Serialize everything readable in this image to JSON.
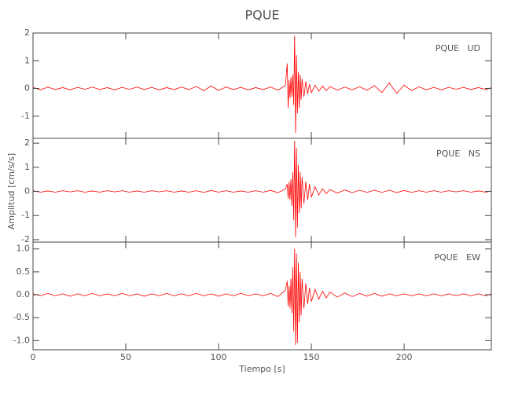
{
  "chart_data": [
    {
      "type": "line",
      "title": "PQUE",
      "label": "PQUE   UD",
      "color": "#ff0000",
      "x": [
        0,
        4,
        8,
        12,
        16,
        20,
        24,
        28,
        32,
        36,
        40,
        44,
        48,
        52,
        56,
        60,
        64,
        68,
        72,
        76,
        80,
        84,
        88,
        92,
        96,
        100,
        104,
        108,
        112,
        116,
        120,
        124,
        128,
        132,
        136,
        137,
        137.5,
        138,
        138.5,
        139,
        139.5,
        140,
        140.5,
        141,
        141.5,
        142,
        142.5,
        143,
        143.5,
        144,
        144.5,
        145,
        146,
        147,
        148,
        149,
        150,
        152,
        154,
        156,
        158,
        160,
        164,
        168,
        172,
        176,
        180,
        184,
        188,
        192,
        196,
        200,
        204,
        208,
        212,
        216,
        220,
        224,
        228,
        232,
        236,
        240,
        244,
        247
      ],
      "values": [
        0.04,
        -0.05,
        0.05,
        -0.04,
        0.03,
        -0.05,
        0.04,
        -0.03,
        0.05,
        -0.04,
        0.03,
        -0.05,
        0.04,
        -0.03,
        0.05,
        -0.04,
        0.04,
        -0.05,
        0.03,
        -0.04,
        0.05,
        -0.04,
        0.07,
        -0.08,
        0.09,
        -0.07,
        0.05,
        -0.04,
        0.04,
        -0.05,
        0.03,
        -0.04,
        0.05,
        -0.06,
        0.1,
        0.9,
        -0.7,
        0.3,
        -0.35,
        0.4,
        -0.3,
        0.5,
        -0.6,
        1.9,
        -1.6,
        1.2,
        -0.9,
        0.6,
        -0.7,
        0.5,
        -0.4,
        0.35,
        -0.3,
        0.25,
        -0.2,
        0.15,
        -0.15,
        0.12,
        -0.1,
        0.09,
        -0.08,
        0.07,
        -0.06,
        0.05,
        -0.05,
        0.06,
        -0.06,
        0.1,
        -0.15,
        0.2,
        -0.18,
        0.12,
        -0.08,
        0.06,
        -0.05,
        0.04,
        -0.05,
        0.04,
        -0.03,
        0.04,
        -0.04,
        0.03,
        -0.04,
        0.03
      ],
      "xlim": [
        0,
        247
      ],
      "xticks": [
        0,
        50,
        100,
        150,
        200
      ],
      "ylim": [
        -1.8,
        2.0
      ],
      "yticks": [
        -1,
        0,
        1,
        2
      ]
    },
    {
      "type": "line",
      "ylabel": "Amplitud [cm/s/s]",
      "label": "PQUE   NS",
      "color": "#ff0000",
      "x": [
        0,
        4,
        8,
        12,
        16,
        20,
        24,
        28,
        32,
        36,
        40,
        44,
        48,
        52,
        56,
        60,
        64,
        68,
        72,
        76,
        80,
        84,
        88,
        92,
        96,
        100,
        104,
        108,
        112,
        116,
        120,
        124,
        128,
        132,
        136,
        137,
        137.5,
        138,
        138.5,
        139,
        139.5,
        140,
        140.5,
        141,
        141.5,
        142,
        142.5,
        143,
        143.5,
        144,
        144.5,
        145,
        146,
        147,
        148,
        149,
        150,
        152,
        154,
        156,
        158,
        160,
        164,
        168,
        172,
        176,
        180,
        184,
        188,
        192,
        196,
        200,
        204,
        208,
        212,
        216,
        220,
        224,
        228,
        232,
        236,
        240,
        244,
        247
      ],
      "values": [
        0.03,
        -0.03,
        0.02,
        -0.03,
        0.03,
        -0.02,
        0.03,
        -0.03,
        0.02,
        -0.03,
        0.03,
        -0.02,
        0.03,
        -0.03,
        0.02,
        -0.03,
        0.03,
        -0.02,
        0.03,
        -0.03,
        0.02,
        -0.03,
        0.03,
        -0.04,
        0.04,
        -0.03,
        0.03,
        -0.03,
        0.02,
        -0.03,
        0.03,
        -0.03,
        0.04,
        -0.05,
        0.1,
        0.3,
        -0.3,
        0.4,
        -0.35,
        0.5,
        -0.6,
        0.8,
        -1.2,
        2.1,
        -1.9,
        1.8,
        -1.5,
        1.1,
        -0.9,
        0.8,
        -0.7,
        0.6,
        -0.5,
        0.4,
        -0.35,
        0.3,
        -0.25,
        0.2,
        -0.15,
        0.12,
        -0.1,
        0.08,
        -0.07,
        0.06,
        -0.05,
        0.05,
        -0.04,
        0.05,
        -0.04,
        0.05,
        -0.05,
        0.04,
        -0.04,
        0.03,
        -0.03,
        0.03,
        -0.03,
        0.03,
        -0.02,
        0.03,
        -0.03,
        0.02,
        -0.03,
        0.02
      ],
      "xlim": [
        0,
        247
      ],
      "xticks": [
        0,
        50,
        100,
        150,
        200
      ],
      "ylim": [
        -2.1,
        2.2
      ],
      "yticks": [
        -2,
        -1,
        0,
        1,
        2
      ]
    },
    {
      "type": "line",
      "xlabel": "Tiempo [s]",
      "label": "PQUE   EW",
      "color": "#ff0000",
      "x": [
        0,
        4,
        8,
        12,
        16,
        20,
        24,
        28,
        32,
        36,
        40,
        44,
        48,
        52,
        56,
        60,
        64,
        68,
        72,
        76,
        80,
        84,
        88,
        92,
        96,
        100,
        104,
        108,
        112,
        116,
        120,
        124,
        128,
        132,
        136,
        137,
        137.5,
        138,
        138.5,
        139,
        139.5,
        140,
        140.5,
        141,
        141.5,
        142,
        142.5,
        143,
        143.5,
        144,
        144.5,
        145,
        146,
        147,
        148,
        149,
        150,
        152,
        154,
        156,
        158,
        160,
        164,
        168,
        172,
        176,
        180,
        184,
        188,
        192,
        196,
        200,
        204,
        208,
        212,
        216,
        220,
        224,
        228,
        232,
        236,
        240,
        244,
        247
      ],
      "values": [
        0.02,
        -0.02,
        0.03,
        -0.02,
        0.02,
        -0.03,
        0.02,
        -0.02,
        0.03,
        -0.02,
        0.02,
        -0.02,
        0.03,
        -0.02,
        0.02,
        -0.03,
        0.02,
        -0.02,
        0.03,
        -0.02,
        0.02,
        -0.02,
        0.03,
        -0.02,
        0.02,
        -0.03,
        0.02,
        -0.02,
        0.03,
        -0.02,
        0.02,
        -0.02,
        0.03,
        -0.04,
        0.1,
        0.3,
        -0.25,
        0.2,
        -0.3,
        0.35,
        -0.4,
        0.6,
        -0.8,
        1.0,
        -1.1,
        0.9,
        -1.05,
        0.7,
        -0.6,
        0.5,
        -0.45,
        0.35,
        -0.3,
        0.25,
        -0.2,
        0.15,
        -0.15,
        0.12,
        -0.1,
        0.08,
        -0.07,
        0.06,
        -0.05,
        0.04,
        -0.04,
        0.03,
        -0.03,
        0.03,
        -0.03,
        0.02,
        -0.02,
        0.02,
        -0.02,
        0.02,
        -0.02,
        0.02,
        -0.02,
        0.02,
        -0.02,
        0.02,
        -0.02,
        0.02,
        -0.02,
        0.02
      ],
      "xlim": [
        0,
        247
      ],
      "xticks": [
        0,
        50,
        100,
        150,
        200
      ],
      "ylim": [
        -1.2,
        1.15
      ],
      "yticks": [
        {
          "value": -1.0,
          "label": "-1.0"
        },
        -0.5,
        {
          "value": 0.0,
          "label": "0.0"
        },
        0.5,
        {
          "value": 1.0,
          "label": "1.0"
        }
      ]
    }
  ]
}
